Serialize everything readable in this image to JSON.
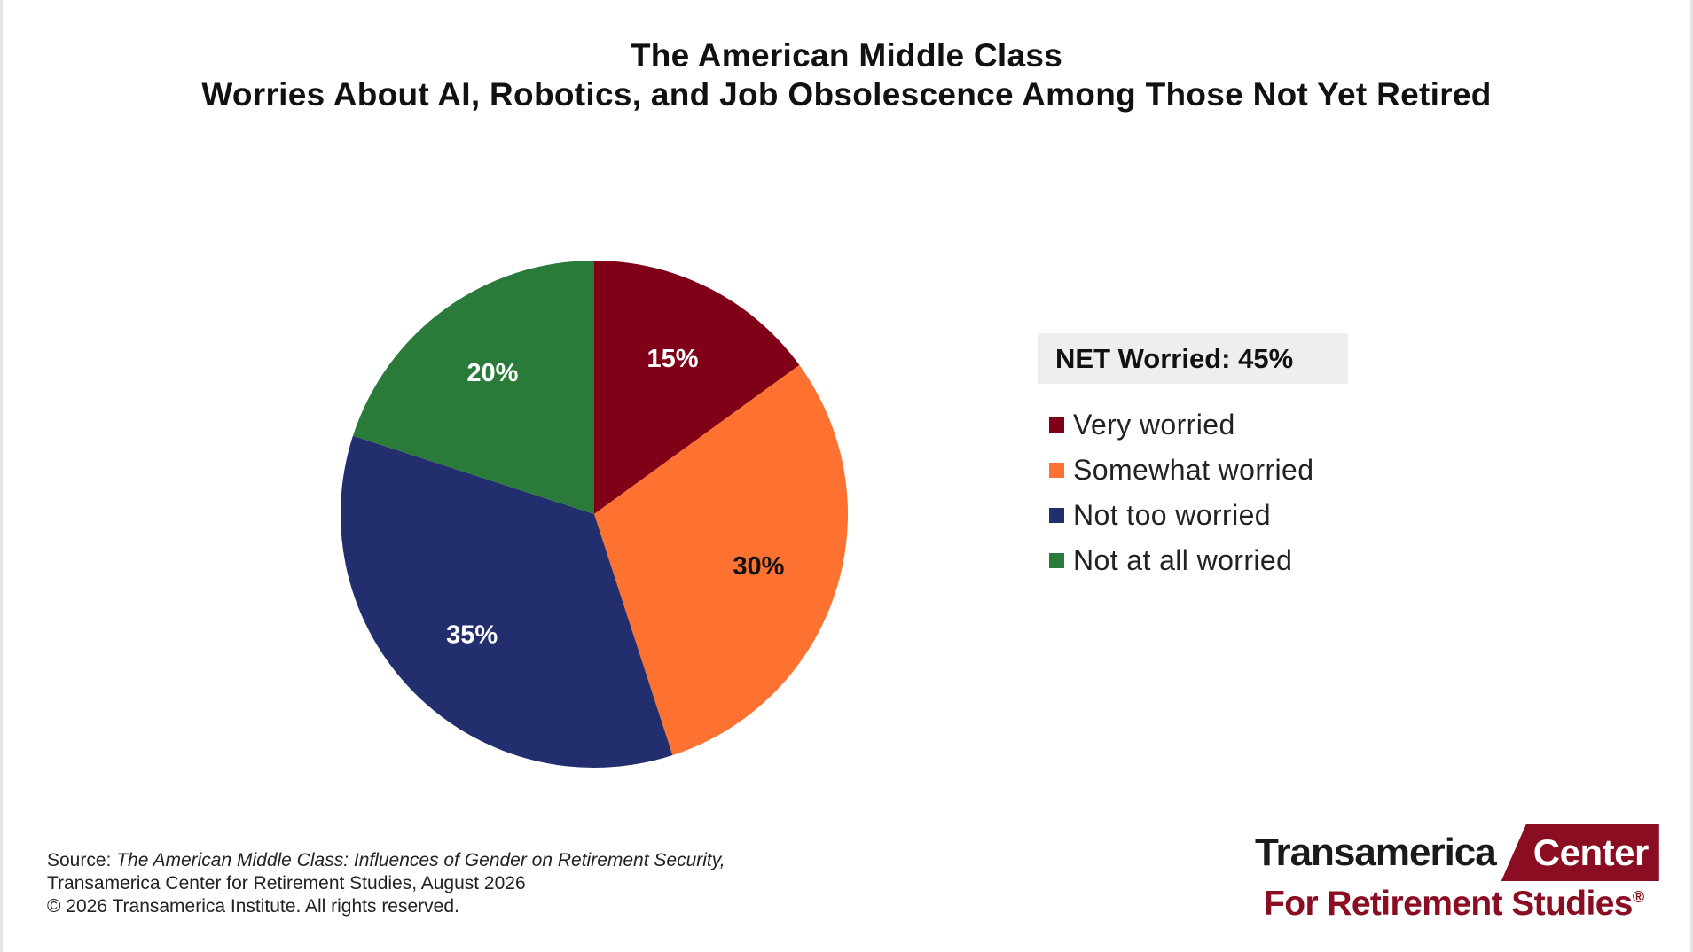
{
  "chart_data": {
    "type": "pie",
    "title": "The American Middle Class",
    "subtitle": "Worries About AI, Robotics, and Job Obsolescence Among Those Not Yet Retired",
    "net_label": "NET Worried: 45%",
    "legend_position": "right",
    "slices": [
      {
        "name": "Very worried",
        "value": 15,
        "label": "15%",
        "color": "#800018",
        "label_color": "#ffffff"
      },
      {
        "name": "Somewhat worried",
        "value": 30,
        "label": "30%",
        "color": "#fd7230",
        "label_color": "#111111"
      },
      {
        "name": "Not too worried",
        "value": 35,
        "label": "35%",
        "color": "#222e6d",
        "label_color": "#ffffff"
      },
      {
        "name": "Not at all worried",
        "value": 20,
        "label": "20%",
        "color": "#2a7a3a",
        "label_color": "#ffffff"
      }
    ]
  },
  "source": {
    "prefix": "Source: ",
    "publication": "The American Middle Class: Influences of Gender on Retirement Security,",
    "line2": "Transamerica Center for Retirement Studies, August 2026",
    "line3": "© 2026 Transamerica Institute. All rights reserved."
  },
  "logo": {
    "word": "Transamerica",
    "box": "Center",
    "bottom": "For Retirement Studies",
    "mark": "®"
  }
}
